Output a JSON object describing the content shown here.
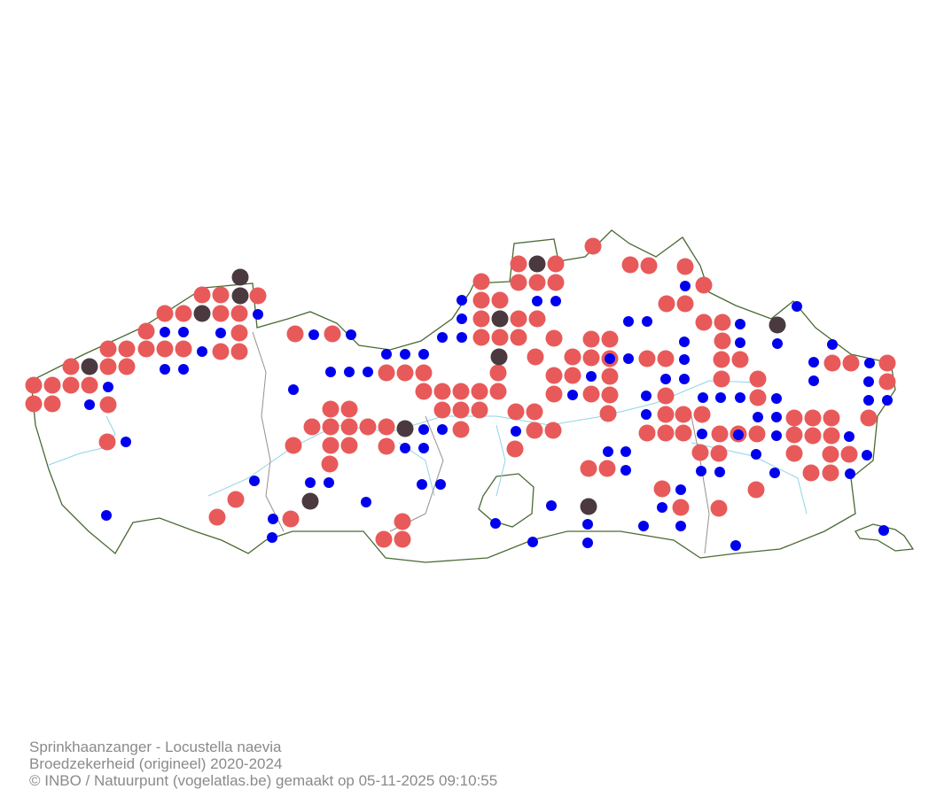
{
  "caption": {
    "lines": [
      "Sprinkhaanzanger - Locustella naevia",
      "Broedzekerheid (origineel) 2020-2024",
      "© INBO / Natuurpunt (vogelatlas.be) gemaakt op 05-11-2025 09:10:55"
    ]
  }
}
